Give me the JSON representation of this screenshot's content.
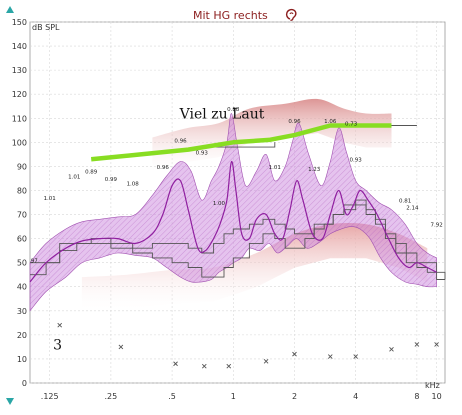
{
  "chart_data": {
    "type": "line",
    "title": "Mit HG rechts",
    "title_icon": "ear-icon",
    "ylabel": "dB SPL",
    "xlabel": "kHz",
    "ylim": [
      0,
      150
    ],
    "xlim": [
      0.1,
      11
    ],
    "x_scale": "log",
    "grid": true,
    "yticks": [
      0,
      10,
      20,
      30,
      40,
      50,
      60,
      70,
      80,
      90,
      100,
      110,
      120,
      130,
      140,
      150
    ],
    "xticks": [
      {
        "value": 0.125,
        "label": ".125"
      },
      {
        "value": 0.25,
        "label": ".25"
      },
      {
        "value": 0.5,
        "label": ".5"
      },
      {
        "value": 1,
        "label": "1"
      },
      {
        "value": 2,
        "label": "2"
      },
      {
        "value": 4,
        "label": "4"
      },
      {
        "value": 8,
        "label": "8"
      },
      {
        "value": 10,
        "label": "10"
      }
    ],
    "annotations": [
      {
        "text": "Viel zu Laut",
        "x": 0.88,
        "y": 110
      },
      {
        "text": "3",
        "x": 0.13,
        "y": 14
      }
    ],
    "colors": {
      "band_fill": "#cc88dd",
      "band_stroke": "#a050b0",
      "line": "#9020a0",
      "green": "#88dd22",
      "red_band": "#e8a8a8",
      "step": "#555555",
      "grid": "#d8d8d8",
      "marker": "#555555"
    },
    "series": [
      {
        "role": "upper_band",
        "x": [
          0.1,
          0.12,
          0.15,
          0.18,
          0.22,
          0.27,
          0.33,
          0.4,
          0.47,
          0.55,
          0.62,
          0.7,
          0.78,
          0.85,
          0.93,
          0.98,
          1.05,
          1.15,
          1.3,
          1.45,
          1.6,
          1.8,
          1.95,
          2.1,
          2.35,
          2.7,
          3.0,
          3.3,
          3.6,
          4.0,
          4.5,
          5.2,
          6.0,
          7.0,
          8.0,
          9.0,
          10.0
        ],
        "y": [
          50,
          58,
          64,
          67,
          68,
          69,
          70,
          78,
          86,
          92,
          88,
          76,
          84,
          90,
          100,
          112,
          98,
          82,
          88,
          95,
          84,
          90,
          100,
          108,
          95,
          82,
          92,
          106,
          96,
          84,
          80,
          75,
          72,
          66,
          58,
          54,
          52
        ]
      },
      {
        "role": "lower_band",
        "x": [
          0.1,
          0.12,
          0.15,
          0.18,
          0.22,
          0.27,
          0.33,
          0.4,
          0.47,
          0.55,
          0.62,
          0.7,
          0.78,
          0.85,
          0.93,
          1.0,
          1.1,
          1.2,
          1.35,
          1.5,
          1.65,
          1.85,
          2.05,
          2.3,
          2.6,
          3.0,
          3.4,
          3.8,
          4.2,
          4.7,
          5.3,
          6.0,
          7.0,
          8.0,
          9.0,
          10.0
        ],
        "y": [
          30,
          38,
          44,
          50,
          52,
          54,
          53,
          52,
          48,
          44,
          42,
          42,
          43,
          46,
          48,
          50,
          52,
          56,
          55,
          58,
          54,
          57,
          60,
          56,
          58,
          62,
          64,
          65,
          64,
          60,
          52,
          46,
          42,
          41,
          40,
          40
        ]
      },
      {
        "role": "response_line",
        "x": [
          0.1,
          0.12,
          0.15,
          0.18,
          0.22,
          0.27,
          0.33,
          0.4,
          0.45,
          0.5,
          0.55,
          0.6,
          0.67,
          0.73,
          0.8,
          0.86,
          0.93,
          0.98,
          1.03,
          1.1,
          1.2,
          1.3,
          1.45,
          1.6,
          1.75,
          1.9,
          2.05,
          2.2,
          2.45,
          2.75,
          3.0,
          3.3,
          3.6,
          3.9,
          4.2,
          4.6,
          5.1,
          5.8,
          6.5,
          7.3,
          8.0,
          9.0,
          10.0
        ],
        "y": [
          42,
          50,
          56,
          59,
          60,
          60,
          58,
          62,
          70,
          82,
          84,
          72,
          56,
          55,
          60,
          66,
          76,
          92,
          80,
          62,
          60,
          68,
          70,
          62,
          60,
          72,
          84,
          76,
          62,
          60,
          70,
          80,
          70,
          74,
          80,
          76,
          70,
          60,
          52,
          48,
          50,
          48,
          46
        ]
      },
      {
        "role": "target_green",
        "x": [
          0.2,
          0.35,
          0.6,
          1.0,
          1.5,
          2.0,
          3.0,
          4.0,
          6.0
        ],
        "y": [
          93,
          95,
          97,
          100,
          101,
          103,
          107,
          107,
          107
        ]
      },
      {
        "role": "step_lower",
        "x": [
          0.1,
          0.12,
          0.14,
          0.17,
          0.2,
          0.25,
          0.32,
          0.4,
          0.5,
          0.6,
          0.7,
          0.8,
          0.9,
          1.0,
          1.2,
          1.4,
          1.6,
          1.8,
          2.0,
          2.25,
          2.5,
          2.8,
          3.1,
          3.5,
          4.0,
          4.5,
          5.0,
          5.6,
          6.3,
          7.1,
          8.0,
          9.0,
          10.0,
          11.0
        ],
        "y": [
          45,
          50,
          55,
          58,
          58,
          56,
          54,
          52,
          50,
          48,
          44,
          44,
          48,
          52,
          58,
          62,
          60,
          56,
          56,
          60,
          64,
          66,
          70,
          72,
          74,
          70,
          66,
          60,
          54,
          50,
          48,
          46,
          43,
          43
        ]
      },
      {
        "role": "step_upper",
        "x": [
          0.1,
          0.14,
          0.2,
          0.25,
          0.32,
          0.4,
          0.5,
          0.6,
          0.7,
          0.8,
          0.9,
          1.0,
          1.2,
          1.4,
          1.6,
          1.8,
          2.0,
          2.5,
          3.1,
          3.5,
          4.0,
          4.5,
          5.0,
          5.6,
          6.3,
          7.1,
          8.0,
          10.0,
          11.0
        ],
        "y": [
          50,
          58,
          60,
          58,
          56,
          58,
          58,
          56,
          54,
          58,
          62,
          64,
          66,
          68,
          66,
          64,
          62,
          66,
          70,
          74,
          76,
          72,
          68,
          62,
          58,
          54,
          50,
          46,
          43
        ]
      },
      {
        "role": "step_box",
        "x": [
          0.8,
          1.0,
          1.6,
          1.6
        ],
        "y": [
          98,
          98,
          98,
          100
        ]
      },
      {
        "role": "step_box_right",
        "x": [
          4.0,
          6.0,
          8.0,
          8.0
        ],
        "y": [
          107,
          107,
          107,
          107
        ]
      },
      {
        "role": "red_upper",
        "x": [
          0.4,
          0.6,
          0.85,
          1.2,
          1.8,
          2.6,
          3.5,
          4.5,
          6.0
        ],
        "y": [
          102,
          106,
          108,
          114,
          116,
          118,
          114,
          112,
          112
        ]
      },
      {
        "role": "red_lower",
        "x": [
          0.18,
          0.3,
          0.5,
          0.8,
          1.3,
          2.0,
          3.0,
          4.5,
          6.5,
          9.0
        ],
        "y": [
          44,
          45,
          47,
          48,
          54,
          62,
          66,
          66,
          62,
          56
        ]
      },
      {
        "role": "markers_x",
        "x": [
          0.14,
          0.28,
          0.52,
          0.72,
          0.95,
          1.45,
          2.0,
          3.0,
          4.0,
          6.0,
          8.0,
          10.0
        ],
        "y": [
          24,
          15,
          8,
          7,
          7,
          9,
          12,
          11,
          11,
          14,
          16,
          16
        ]
      }
    ],
    "data_labels": [
      {
        "x": 0.105,
        "y": 50,
        "text": "97"
      },
      {
        "x": 0.125,
        "y": 76,
        "text": "1.01"
      },
      {
        "x": 0.165,
        "y": 85,
        "text": "1.01"
      },
      {
        "x": 0.2,
        "y": 87,
        "text": "0.89"
      },
      {
        "x": 0.25,
        "y": 84,
        "text": "0.99"
      },
      {
        "x": 0.32,
        "y": 82,
        "text": "1.08"
      },
      {
        "x": 0.45,
        "y": 89,
        "text": "0.96"
      },
      {
        "x": 0.55,
        "y": 100,
        "text": "0.96"
      },
      {
        "x": 0.7,
        "y": 95,
        "text": "0.93"
      },
      {
        "x": 0.85,
        "y": 74,
        "text": "1.00"
      },
      {
        "x": 1.0,
        "y": 113,
        "text": "0.88"
      },
      {
        "x": 1.6,
        "y": 89,
        "text": "1.01"
      },
      {
        "x": 2.0,
        "y": 108,
        "text": "0.96"
      },
      {
        "x": 2.5,
        "y": 88,
        "text": "1.23"
      },
      {
        "x": 3.0,
        "y": 108,
        "text": "1.06"
      },
      {
        "x": 4.0,
        "y": 92,
        "text": "0.93"
      },
      {
        "x": 3.8,
        "y": 107,
        "text": "0.73"
      },
      {
        "x": 7.0,
        "y": 75,
        "text": "0.81"
      },
      {
        "x": 7.6,
        "y": 72,
        "text": "2.14"
      },
      {
        "x": 10.0,
        "y": 65,
        "text": "7.92"
      }
    ]
  }
}
